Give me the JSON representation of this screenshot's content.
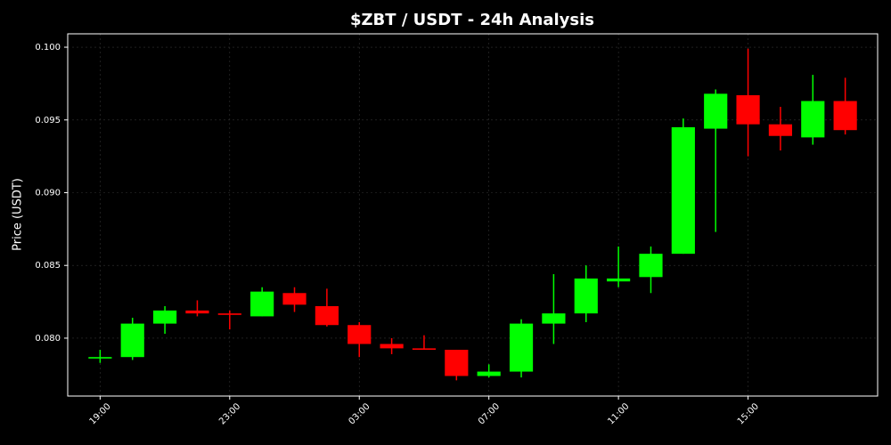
{
  "chart_data": {
    "type": "candlestick",
    "title": "$ZBT / USDT - 24h Analysis",
    "y_label": "Price (USDT)",
    "categories": [
      "19:00",
      null,
      null,
      null,
      "23:00",
      null,
      null,
      null,
      "03:00",
      null,
      null,
      null,
      "07:00",
      null,
      null,
      null,
      "11:00",
      null,
      null,
      null,
      "15:00",
      null,
      null,
      null
    ],
    "open": [
      0.0786,
      0.0787,
      0.081,
      0.0819,
      0.0817,
      0.0815,
      0.0831,
      0.0822,
      0.0809,
      0.0796,
      0.0793,
      0.0792,
      0.0774,
      0.0777,
      0.081,
      0.0817,
      0.0839,
      0.0842,
      0.0858,
      0.0944,
      0.0967,
      0.0947,
      0.0938,
      0.0963
    ],
    "high": [
      0.0792,
      0.0814,
      0.0822,
      0.0826,
      0.0819,
      0.0835,
      0.0835,
      0.0834,
      0.0811,
      0.08,
      0.0802,
      0.0792,
      0.0782,
      0.0813,
      0.0844,
      0.085,
      0.0863,
      0.0863,
      0.0951,
      0.0971,
      0.0999,
      0.0959,
      0.0981,
      0.0979
    ],
    "low": [
      0.0783,
      0.0785,
      0.0803,
      0.0815,
      0.0806,
      0.0815,
      0.0818,
      0.0808,
      0.0787,
      0.0789,
      0.0792,
      0.0771,
      0.0773,
      0.0773,
      0.0796,
      0.0811,
      0.0835,
      0.0831,
      0.0858,
      0.0873,
      0.0925,
      0.0929,
      0.0933,
      0.094
    ],
    "close": [
      0.0787,
      0.081,
      0.0819,
      0.0817,
      0.0816,
      0.0832,
      0.0823,
      0.0809,
      0.0796,
      0.0793,
      0.0792,
      0.0774,
      0.0777,
      0.081,
      0.0817,
      0.0841,
      0.0841,
      0.0858,
      0.0945,
      0.0968,
      0.0947,
      0.0939,
      0.0963,
      0.0943
    ],
    "up_color": "#00ff00",
    "down_color": "#ff0000",
    "ylim": [
      0.07602,
      0.10092
    ],
    "yticks": [
      {
        "value": 0.08,
        "label": "0.080"
      },
      0.085,
      {
        "value": 0.09,
        "label": "0.090"
      },
      0.095,
      {
        "value": 0.1,
        "label": "0.100"
      }
    ],
    "grid": true
  }
}
